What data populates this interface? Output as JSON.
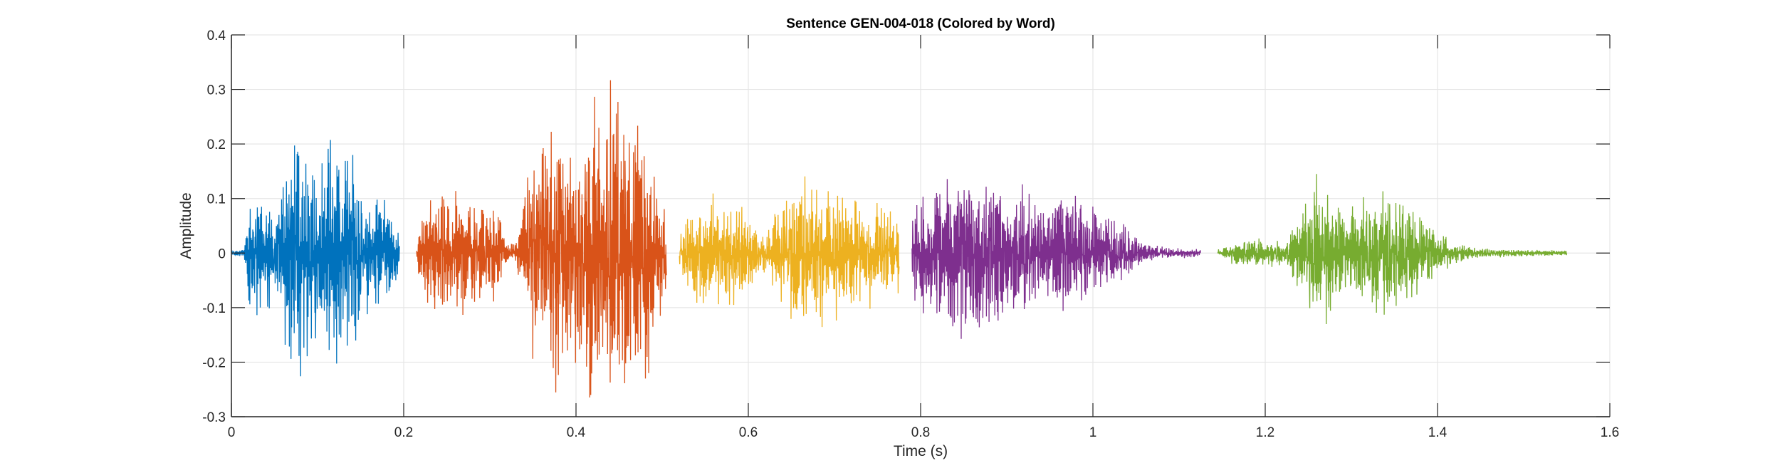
{
  "chart_data": {
    "type": "line",
    "title": "Sentence GEN-004-018 (Colored by Word)",
    "xlabel": "Time (s)",
    "ylabel": "Amplitude",
    "xlim": [
      0,
      1.6
    ],
    "ylim": [
      -0.3,
      0.4
    ],
    "xticks": [
      0,
      0.2,
      0.4,
      0.6,
      0.8,
      1,
      1.2,
      1.4,
      1.6
    ],
    "xtick_labels": [
      "0",
      "0.2",
      "0.4",
      "0.6",
      "0.8",
      "1",
      "1.2",
      "1.4",
      "1.6"
    ],
    "yticks": [
      -0.3,
      -0.2,
      -0.1,
      0,
      0.1,
      0.2,
      0.3,
      0.4
    ],
    "ytick_labels": [
      "-0.3",
      "-0.2",
      "-0.1",
      "0",
      "0.1",
      "0.2",
      "0.3",
      "0.4"
    ],
    "grid": true,
    "series": [
      {
        "name": "word-1",
        "color": "#0072BD",
        "start": 0.0,
        "end": 0.195,
        "envelope": [
          [
            0,
            0.005
          ],
          [
            0.015,
            0.01
          ],
          [
            0.02,
            0.1
          ],
          [
            0.035,
            0.13
          ],
          [
            0.05,
            0.08
          ],
          [
            0.065,
            0.2
          ],
          [
            0.08,
            0.245
          ],
          [
            0.1,
            0.2
          ],
          [
            0.125,
            0.22
          ],
          [
            0.145,
            0.2
          ],
          [
            0.155,
            0.12
          ],
          [
            0.18,
            0.1
          ],
          [
            0.195,
            0.05
          ]
        ]
      },
      {
        "name": "word-2",
        "color": "#D95319",
        "start": 0.215,
        "end": 0.505,
        "envelope": [
          [
            0.215,
            0.04
          ],
          [
            0.23,
            0.1
          ],
          [
            0.26,
            0.13
          ],
          [
            0.29,
            0.09
          ],
          [
            0.31,
            0.09
          ],
          [
            0.32,
            0.02
          ],
          [
            0.33,
            0.02
          ],
          [
            0.345,
            0.2
          ],
          [
            0.37,
            0.29
          ],
          [
            0.4,
            0.2
          ],
          [
            0.42,
            0.3
          ],
          [
            0.44,
            0.33
          ],
          [
            0.47,
            0.3
          ],
          [
            0.49,
            0.2
          ],
          [
            0.505,
            0.06
          ]
        ]
      },
      {
        "name": "word-3",
        "color": "#EDB120",
        "start": 0.52,
        "end": 0.775,
        "envelope": [
          [
            0.52,
            0.03
          ],
          [
            0.535,
            0.09
          ],
          [
            0.56,
            0.12
          ],
          [
            0.6,
            0.09
          ],
          [
            0.615,
            0.03
          ],
          [
            0.625,
            0.05
          ],
          [
            0.645,
            0.13
          ],
          [
            0.67,
            0.16
          ],
          [
            0.7,
            0.13
          ],
          [
            0.74,
            0.1
          ],
          [
            0.775,
            0.07
          ]
        ]
      },
      {
        "name": "word-4",
        "color": "#7E2F8E",
        "start": 0.79,
        "end": 1.125,
        "envelope": [
          [
            0.79,
            0.08
          ],
          [
            0.81,
            0.12
          ],
          [
            0.84,
            0.17
          ],
          [
            0.88,
            0.15
          ],
          [
            0.91,
            0.13
          ],
          [
            0.94,
            0.09
          ],
          [
            0.97,
            0.12
          ],
          [
            1.0,
            0.09
          ],
          [
            1.03,
            0.06
          ],
          [
            1.06,
            0.02
          ],
          [
            1.09,
            0.01
          ],
          [
            1.125,
            0.008
          ]
        ]
      },
      {
        "name": "word-5",
        "color": "#77AC30",
        "start": 1.145,
        "end": 1.55,
        "envelope": [
          [
            1.145,
            0.008
          ],
          [
            1.17,
            0.025
          ],
          [
            1.2,
            0.03
          ],
          [
            1.225,
            0.02
          ],
          [
            1.24,
            0.08
          ],
          [
            1.255,
            0.15
          ],
          [
            1.29,
            0.1
          ],
          [
            1.33,
            0.12
          ],
          [
            1.36,
            0.1
          ],
          [
            1.39,
            0.06
          ],
          [
            1.42,
            0.02
          ],
          [
            1.45,
            0.01
          ],
          [
            1.55,
            0.005
          ]
        ]
      }
    ]
  }
}
